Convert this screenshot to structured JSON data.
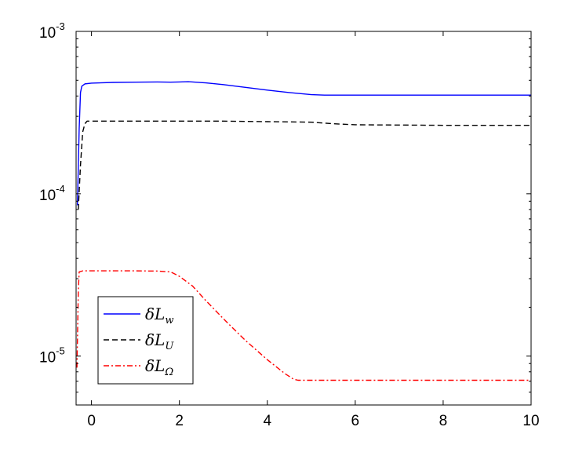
{
  "chart_data": {
    "type": "line",
    "title": "",
    "xlabel": "",
    "ylabel": "",
    "xlim": [
      -0.35,
      10
    ],
    "ylim": [
      5e-06,
      0.001
    ],
    "yscale": "log",
    "grid": false,
    "legend_position": "bottom-left",
    "x_ticks": [
      {
        "value": 0,
        "label": "0"
      },
      {
        "value": 2,
        "label": "2"
      },
      {
        "value": 4,
        "label": "4"
      },
      {
        "value": 6,
        "label": "6"
      },
      {
        "value": 8,
        "label": "8"
      },
      {
        "value": 10,
        "label": "10"
      }
    ],
    "y_ticks": [
      {
        "value": 0.001,
        "base": "10",
        "exponent": "-3"
      },
      {
        "value": 0.0001,
        "base": "10",
        "exponent": "-4"
      },
      {
        "value": 1e-05,
        "base": "10",
        "exponent": "-5"
      }
    ],
    "series": [
      {
        "name": "δL_w",
        "legend_symbol": "δL",
        "legend_subscript": "w",
        "color": "#0000ff",
        "dash": "solid",
        "x": [
          -0.32,
          -0.28,
          -0.25,
          -0.22,
          -0.15,
          0,
          0.5,
          1.0,
          1.5,
          1.8,
          2.0,
          2.2,
          2.6,
          3.0,
          3.5,
          4.0,
          4.5,
          5.0,
          5.3,
          6.0,
          7.0,
          8.0,
          9.0,
          10.0
        ],
        "y": [
          8.5e-05,
          0.00025,
          0.00042,
          0.00046,
          0.000475,
          0.00048,
          0.000485,
          0.000487,
          0.000488,
          0.000487,
          0.000488,
          0.00049,
          0.000482,
          0.00047,
          0.000452,
          0.000435,
          0.00042,
          0.000408,
          0.000405,
          0.000405,
          0.000405,
          0.000405,
          0.000405,
          0.000405
        ]
      },
      {
        "name": "δL_U",
        "legend_symbol": "δL",
        "legend_subscript": "U",
        "color": "#000000",
        "dash": "dashed",
        "x": [
          -0.3,
          -0.25,
          -0.2,
          -0.15,
          -0.1,
          0,
          1.0,
          2.0,
          3.0,
          4.0,
          5.0,
          5.5,
          6.0,
          7.0,
          8.0,
          9.0,
          10.0
        ],
        "y": [
          8e-05,
          0.00015,
          0.00024,
          0.00027,
          0.00028,
          0.00028,
          0.00028,
          0.00028,
          0.00028,
          0.000278,
          0.000276,
          0.00027,
          0.000266,
          0.000265,
          0.000264,
          0.000264,
          0.000264
        ]
      },
      {
        "name": "δL_Ω",
        "legend_symbol": "δL",
        "legend_subscript": "Ω",
        "color": "#ff0000",
        "dash": "dashdot",
        "x": [
          -0.33,
          -0.3,
          -0.28,
          -0.2,
          -0.1,
          0,
          0.5,
          1.0,
          1.5,
          1.8,
          2.0,
          2.3,
          2.6,
          3.0,
          3.5,
          4.0,
          4.4,
          4.6,
          4.7,
          5.0,
          6.0,
          7.0,
          8.0,
          9.0,
          10.0
        ],
        "y": [
          8.5e-06,
          2.5e-05,
          3.3e-05,
          3.35e-05,
          3.35e-05,
          3.35e-05,
          3.35e-05,
          3.35e-05,
          3.34e-05,
          3.3e-05,
          3.1e-05,
          2.7e-05,
          2.2e-05,
          1.7e-05,
          1.25e-05,
          9.5e-06,
          7.8e-06,
          7.2e-06,
          7.1e-06,
          7.1e-06,
          7.1e-06,
          7.1e-06,
          7.1e-06,
          7.1e-06,
          7.1e-06
        ]
      }
    ]
  }
}
